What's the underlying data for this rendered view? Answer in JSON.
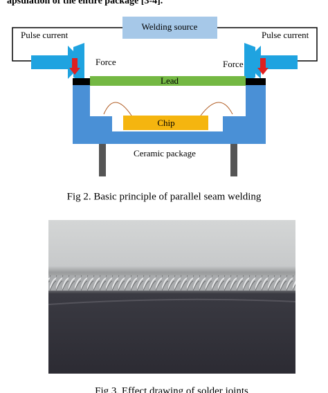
{
  "header": {
    "text": "apsulation of the entire package [3-4]."
  },
  "figure2": {
    "labels": {
      "welding_source": "Welding source",
      "pulse_current_left": "Pulse current",
      "pulse_current_right": "Pulse current",
      "force_left": "Force",
      "force_right": "Force",
      "lead": "Lead",
      "chip": "Chip",
      "ceramic_package": "Ceramic package"
    },
    "caption": "Fig 2. Basic principle of parallel seam welding"
  },
  "figure3": {
    "caption": "Fig 3. Effect drawing of solder joints"
  }
}
